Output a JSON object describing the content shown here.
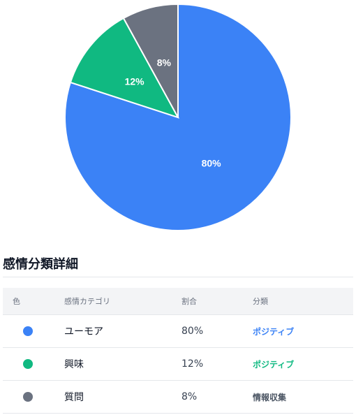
{
  "chart_data": {
    "type": "pie",
    "slices": [
      {
        "label": "ユーモア",
        "value": 80,
        "color": "#3b82f6",
        "display": "80%"
      },
      {
        "label": "興味",
        "value": 12,
        "color": "#10b981",
        "display": "12%"
      },
      {
        "label": "質問",
        "value": 8,
        "color": "#6b7280",
        "display": "8%"
      }
    ]
  },
  "table": {
    "title": "感情分類詳細",
    "headers": [
      "色",
      "感情カテゴリ",
      "割合",
      "分類"
    ],
    "rows": [
      {
        "color": "#3b82f6",
        "category": "ユーモア",
        "percent": "80%",
        "classification": "ポジティブ",
        "class_color": "#3b82f6"
      },
      {
        "color": "#10b981",
        "category": "興味",
        "percent": "12%",
        "classification": "ポジティブ",
        "class_color": "#10b981"
      },
      {
        "color": "#6b7280",
        "category": "質問",
        "percent": "8%",
        "classification": "情報収集",
        "class_color": "#4b5563"
      }
    ]
  }
}
